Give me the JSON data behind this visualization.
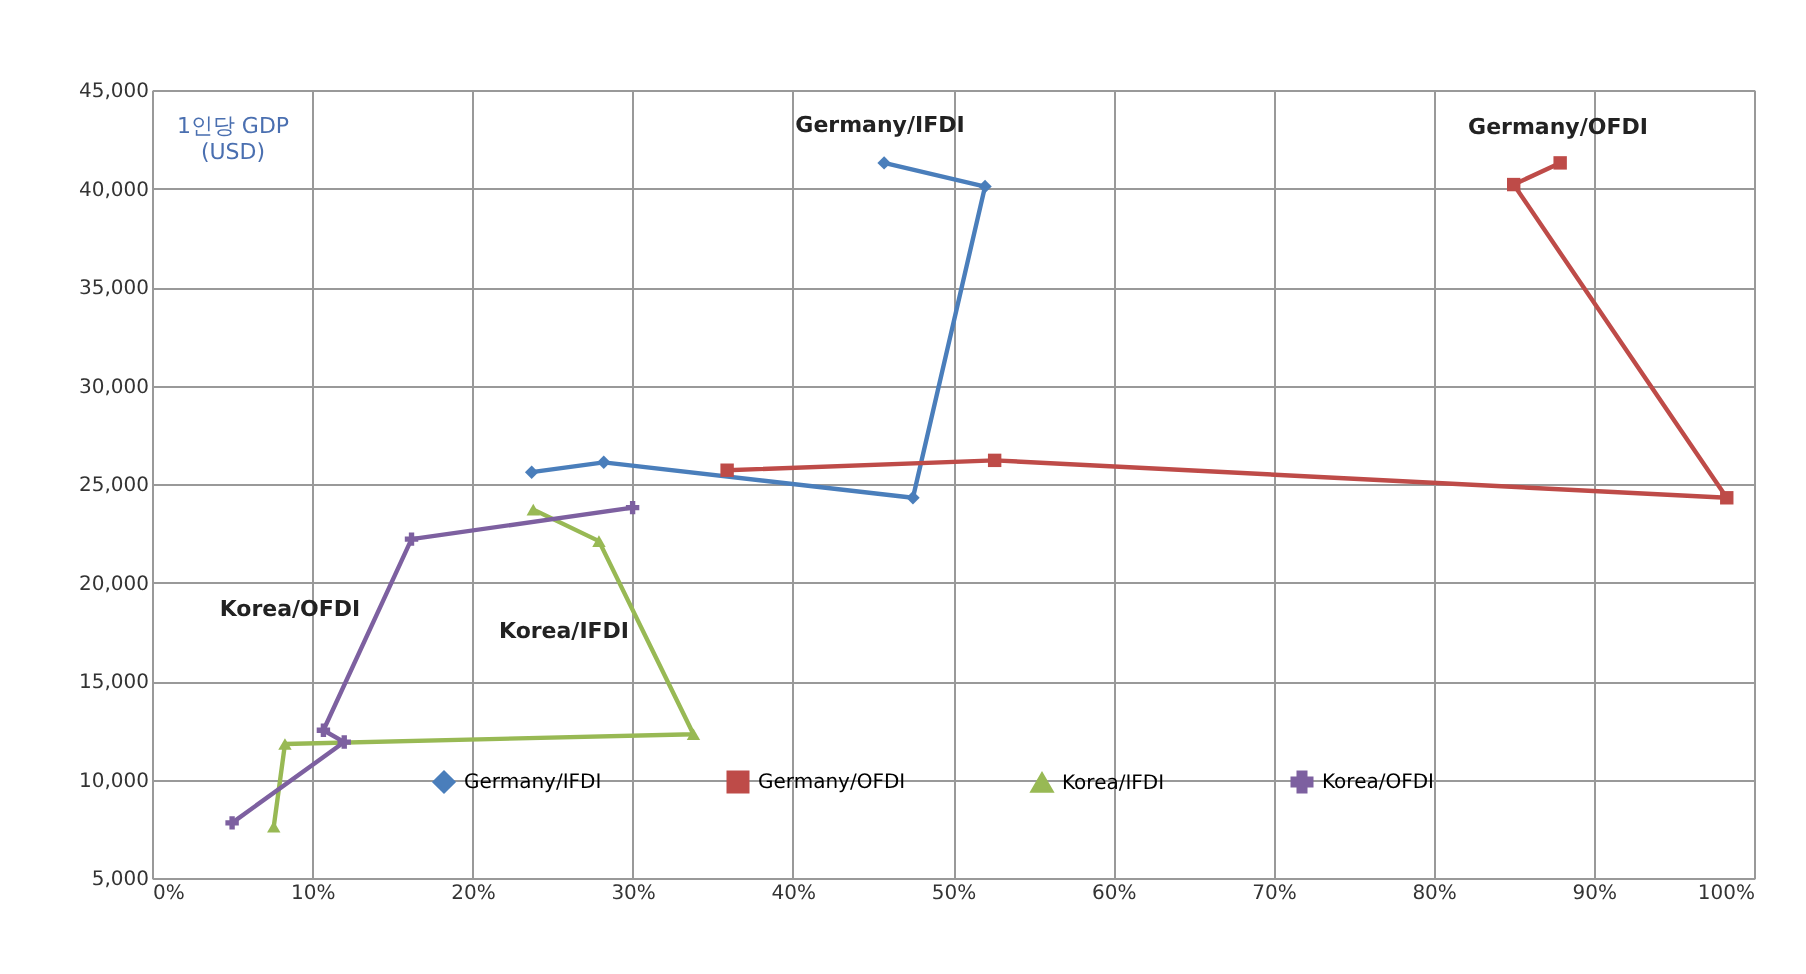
{
  "chart_data": {
    "type": "line",
    "ylabel": "1인당 GDP\n(USD)",
    "series": [
      {
        "name": "Germany/IFDI",
        "color": "#4a7ebb",
        "marker": "diamond",
        "x": [
          23.7,
          28.2,
          47.5,
          52.0,
          45.7
        ],
        "values": [
          25600,
          26100,
          24300,
          40100,
          41300
        ]
      },
      {
        "name": "Germany/OFDI",
        "color": "#be4b48",
        "marker": "square",
        "x": [
          35.9,
          52.6,
          98.3,
          85.0,
          87.9
        ],
        "values": [
          25700,
          26200,
          24300,
          40200,
          41300
        ]
      },
      {
        "name": "Korea/IFDI",
        "color": "#98b954",
        "marker": "triangle",
        "x": [
          23.8,
          27.9,
          33.8,
          8.3,
          7.6
        ],
        "values": [
          23700,
          22100,
          12300,
          11800,
          7600
        ]
      },
      {
        "name": "Korea/OFDI",
        "color": "#7d60a0",
        "marker": "cross",
        "x": [
          5.0,
          12.0,
          10.7,
          16.2,
          30.0
        ],
        "values": [
          7800,
          11900,
          12500,
          22200,
          23800
        ]
      }
    ],
    "xlim": [
      0,
      100
    ],
    "xticks": [
      {
        "value": 0,
        "label": "0%"
      },
      {
        "value": 10,
        "label": "10%"
      },
      {
        "value": 20,
        "label": "20%"
      },
      {
        "value": 30,
        "label": "30%"
      },
      {
        "value": 40,
        "label": "40%"
      },
      {
        "value": 50,
        "label": "50%"
      },
      {
        "value": 60,
        "label": "60%"
      },
      {
        "value": 70,
        "label": "70%"
      },
      {
        "value": 80,
        "label": "80%"
      },
      {
        "value": 90,
        "label": "90%"
      },
      {
        "value": 100,
        "label": "100%"
      }
    ],
    "ylim": [
      5000,
      45000
    ],
    "yticks": [
      {
        "value": 5000,
        "label": "5,000"
      },
      {
        "value": 10000,
        "label": "10,000"
      },
      {
        "value": 15000,
        "label": "15,000"
      },
      {
        "value": 20000,
        "label": "20,000"
      },
      {
        "value": 25000,
        "label": "25,000"
      },
      {
        "value": 30000,
        "label": "30,000"
      },
      {
        "value": 35000,
        "label": "35,000"
      },
      {
        "value": 40000,
        "label": "40,000"
      },
      {
        "value": 45000,
        "label": "45,000"
      }
    ],
    "annotations": [
      "Germany/IFDI",
      "Germany/OFDI",
      "Korea/OFDI",
      "Korea/IFDI"
    ],
    "grid": true,
    "legend": "bottom"
  }
}
